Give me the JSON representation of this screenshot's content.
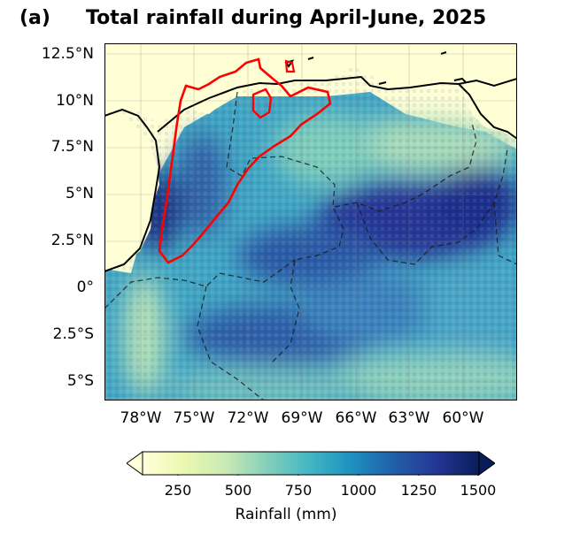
{
  "figure": {
    "panel_label": "(a)",
    "title": "Total rainfall during April-June, 2025"
  },
  "map": {
    "lat_ticks": [
      "12.5°N",
      "10°N",
      "7.5°N",
      "5°N",
      "2.5°N",
      "0°",
      "2.5°S",
      "5°S"
    ],
    "lon_ticks": [
      "78°W",
      "75°W",
      "72°W",
      "69°W",
      "66°W",
      "63°W",
      "60°W"
    ],
    "lat_values": [
      12.5,
      10,
      7.5,
      5,
      2.5,
      0,
      -2.5,
      -5
    ],
    "lon_values": [
      -78,
      -75,
      -72,
      -69,
      -66,
      -63,
      -60
    ],
    "extent": {
      "lon_min": -80,
      "lon_max": -57,
      "lat_min": -6,
      "lat_max": 13
    },
    "highlight_color": "#ff0000",
    "border_style": "dashed",
    "colormap": "YlGnBu"
  },
  "colorbar": {
    "ticks": [
      "250",
      "500",
      "750",
      "1000",
      "1250",
      "1500"
    ],
    "tick_values": [
      250,
      500,
      750,
      1000,
      1250,
      1500
    ],
    "range": [
      100,
      1500
    ],
    "extend": "both",
    "label": "Rainfall (mm)",
    "colors": [
      "#ffffd9",
      "#edf8b1",
      "#c7e9b4",
      "#7fcdbb",
      "#41b6c4",
      "#1d91c0",
      "#225ea8",
      "#253494",
      "#081d58"
    ]
  }
}
